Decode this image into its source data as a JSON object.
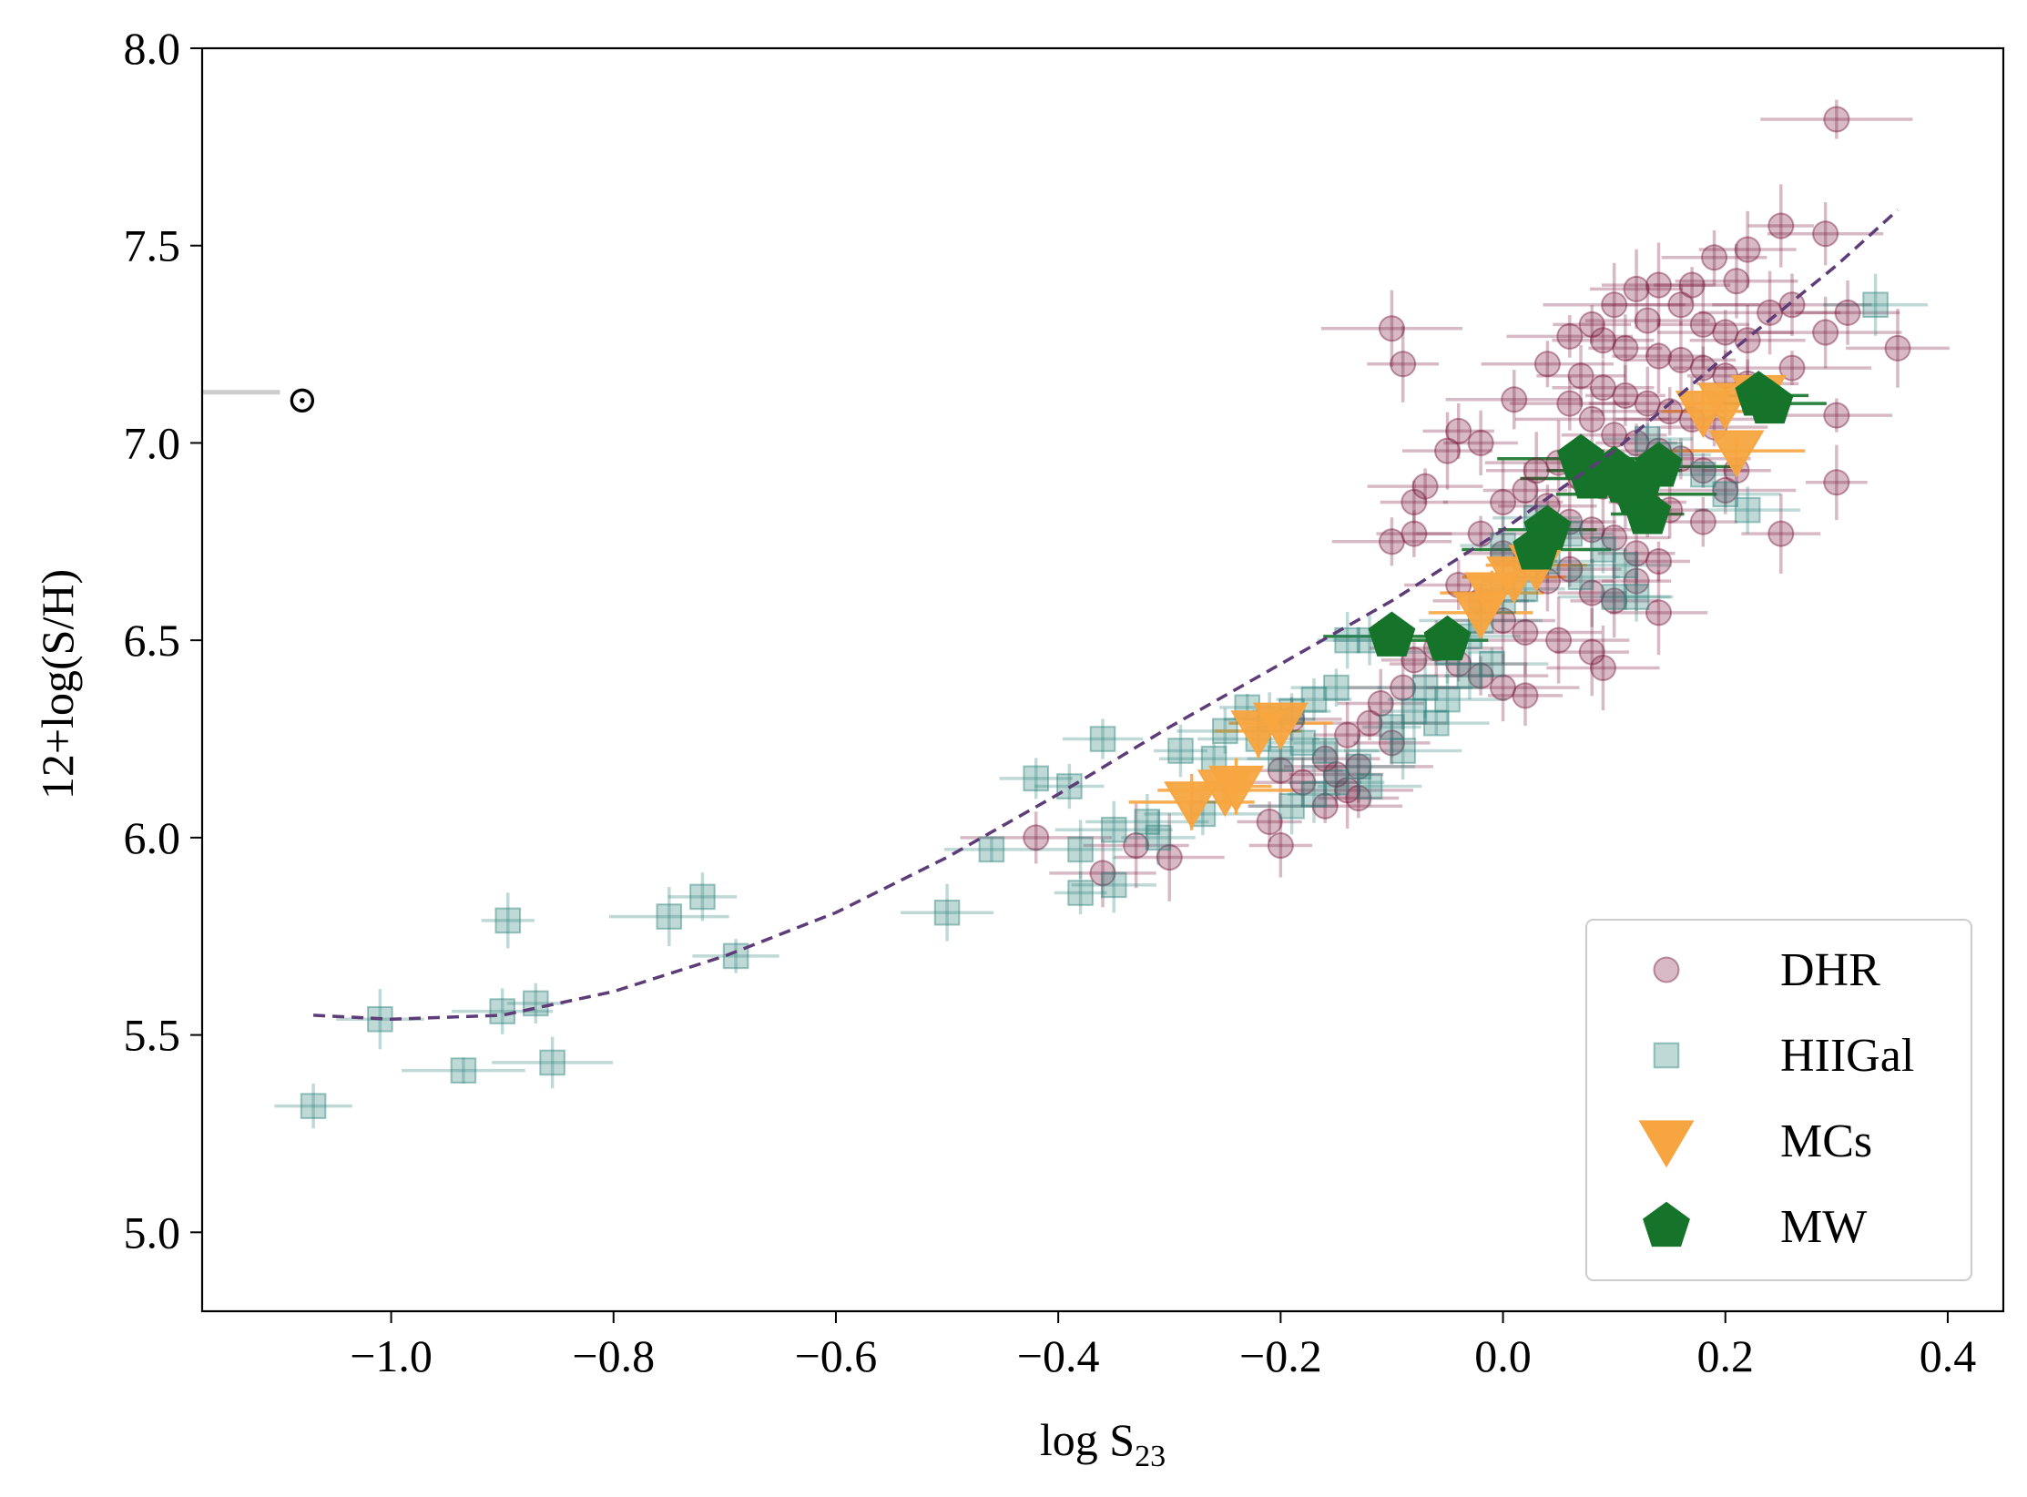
{
  "chart_data": {
    "type": "scatter",
    "title": "",
    "xlabel": "log S",
    "xlabel_sub": "23",
    "ylabel": "12+log(S/H)",
    "xlim": [
      -1.17,
      0.45
    ],
    "ylim": [
      4.8,
      8.0
    ],
    "xticks": [
      -1.0,
      -0.8,
      -0.6,
      -0.4,
      -0.2,
      0.0,
      0.2,
      0.4
    ],
    "xtick_labels": [
      "−1.0",
      "−0.8",
      "−0.6",
      "−0.4",
      "−0.2",
      "0.0",
      "0.2",
      "0.4"
    ],
    "yticks": [
      5.0,
      5.5,
      6.0,
      6.5,
      7.0,
      7.5,
      8.0
    ],
    "ytick_labels": [
      "5.0",
      "5.5",
      "6.0",
      "6.5",
      "7.0",
      "7.5",
      "8.0"
    ],
    "legend_position": "lower-right",
    "sun_marker": {
      "symbol": "⊙",
      "x": -1.08,
      "y": 7.11,
      "bar_x": [
        -1.17,
        -1.1
      ]
    },
    "fit_curve": {
      "style": "dashed",
      "color": "#5e3c78",
      "x_range": [
        -1.07,
        0.355
      ],
      "points": [
        [
          -1.07,
          5.55
        ],
        [
          -1.0,
          5.54
        ],
        [
          -0.9,
          5.55
        ],
        [
          -0.8,
          5.61
        ],
        [
          -0.7,
          5.7
        ],
        [
          -0.6,
          5.81
        ],
        [
          -0.5,
          5.95
        ],
        [
          -0.4,
          6.11
        ],
        [
          -0.3,
          6.28
        ],
        [
          -0.2,
          6.44
        ],
        [
          -0.1,
          6.6
        ],
        [
          0.0,
          6.78
        ],
        [
          0.1,
          6.98
        ],
        [
          0.2,
          7.22
        ],
        [
          0.3,
          7.45
        ],
        [
          0.355,
          7.59
        ]
      ]
    },
    "series": [
      {
        "name": "DHR",
        "marker": "circle",
        "color": "#7a1a3e",
        "points": [
          [
            0.3,
            7.82
          ],
          [
            0.25,
            7.55
          ],
          [
            0.29,
            7.53
          ],
          [
            0.22,
            7.49
          ],
          [
            0.19,
            7.47
          ],
          [
            0.21,
            7.41
          ],
          [
            0.17,
            7.4
          ],
          [
            0.12,
            7.39
          ],
          [
            0.14,
            7.4
          ],
          [
            0.16,
            7.35
          ],
          [
            0.1,
            7.35
          ],
          [
            0.08,
            7.3
          ],
          [
            0.26,
            7.35
          ],
          [
            0.24,
            7.33
          ],
          [
            0.31,
            7.33
          ],
          [
            0.29,
            7.28
          ],
          [
            0.355,
            7.24
          ],
          [
            0.13,
            7.31
          ],
          [
            0.18,
            7.3
          ],
          [
            0.2,
            7.28
          ],
          [
            0.22,
            7.26
          ],
          [
            0.06,
            7.27
          ],
          [
            0.09,
            7.26
          ],
          [
            0.11,
            7.24
          ],
          [
            0.14,
            7.22
          ],
          [
            0.16,
            7.21
          ],
          [
            0.18,
            7.19
          ],
          [
            0.2,
            7.17
          ],
          [
            0.22,
            7.15
          ],
          [
            0.26,
            7.19
          ],
          [
            0.04,
            7.2
          ],
          [
            0.07,
            7.17
          ],
          [
            0.09,
            7.14
          ],
          [
            0.11,
            7.12
          ],
          [
            0.13,
            7.1
          ],
          [
            0.15,
            7.08
          ],
          [
            0.17,
            7.06
          ],
          [
            0.19,
            7.04
          ],
          [
            0.01,
            7.11
          ],
          [
            0.06,
            7.1
          ],
          [
            0.08,
            7.06
          ],
          [
            0.1,
            7.02
          ],
          [
            0.12,
            7.0
          ],
          [
            0.14,
            6.98
          ],
          [
            0.16,
            6.96
          ],
          [
            0.18,
            6.93
          ],
          [
            0.3,
            7.07
          ],
          [
            -0.02,
            7.0
          ],
          [
            -0.04,
            7.03
          ],
          [
            -0.05,
            6.98
          ],
          [
            -0.09,
            7.2
          ],
          [
            -0.1,
            7.29
          ],
          [
            -0.07,
            6.89
          ],
          [
            0.03,
            6.93
          ],
          [
            0.05,
            6.95
          ],
          [
            0.07,
            6.91
          ],
          [
            0.09,
            6.89
          ],
          [
            0.11,
            6.87
          ],
          [
            0.13,
            6.85
          ],
          [
            0.15,
            6.83
          ],
          [
            0.18,
            6.8
          ],
          [
            0.2,
            6.88
          ],
          [
            0.3,
            6.9
          ],
          [
            0.21,
            6.93
          ],
          [
            -0.08,
            6.85
          ],
          [
            0.0,
            6.85
          ],
          [
            0.02,
            6.88
          ],
          [
            0.04,
            6.84
          ],
          [
            0.06,
            6.8
          ],
          [
            0.08,
            6.78
          ],
          [
            0.1,
            6.76
          ],
          [
            0.12,
            6.72
          ],
          [
            0.14,
            6.7
          ],
          [
            0.25,
            6.77
          ],
          [
            -0.1,
            6.75
          ],
          [
            -0.08,
            6.77
          ],
          [
            -0.02,
            6.77
          ],
          [
            0.0,
            6.72
          ],
          [
            0.02,
            6.7
          ],
          [
            0.04,
            6.65
          ],
          [
            0.06,
            6.68
          ],
          [
            0.08,
            6.62
          ],
          [
            0.1,
            6.6
          ],
          [
            0.12,
            6.65
          ],
          [
            0.14,
            6.57
          ],
          [
            -0.04,
            6.64
          ],
          [
            -0.02,
            6.6
          ],
          [
            0.0,
            6.55
          ],
          [
            0.02,
            6.52
          ],
          [
            0.05,
            6.5
          ],
          [
            0.08,
            6.47
          ],
          [
            0.09,
            6.43
          ],
          [
            -0.06,
            6.48
          ],
          [
            -0.04,
            6.44
          ],
          [
            -0.02,
            6.41
          ],
          [
            0.0,
            6.38
          ],
          [
            0.02,
            6.36
          ],
          [
            -0.08,
            6.45
          ],
          [
            -0.09,
            6.38
          ],
          [
            -0.11,
            6.34
          ],
          [
            -0.12,
            6.29
          ],
          [
            -0.14,
            6.26
          ],
          [
            -0.1,
            6.24
          ],
          [
            -0.16,
            6.2
          ],
          [
            -0.13,
            6.18
          ],
          [
            -0.15,
            6.16
          ],
          [
            -0.18,
            6.14
          ],
          [
            -0.14,
            6.12
          ],
          [
            -0.16,
            6.08
          ],
          [
            -0.13,
            6.1
          ],
          [
            -0.2,
            6.17
          ],
          [
            -0.21,
            6.04
          ],
          [
            -0.2,
            5.98
          ],
          [
            -0.3,
            5.95
          ],
          [
            -0.33,
            5.98
          ],
          [
            -0.36,
            5.91
          ],
          [
            -0.42,
            6.0
          ],
          [
            -0.19,
            6.3
          ]
        ]
      },
      {
        "name": "HIIGal",
        "marker": "square",
        "color": "#2a8079",
        "points": [
          [
            0.335,
            7.35
          ],
          [
            0.13,
            7.01
          ],
          [
            0.15,
            6.97
          ],
          [
            0.18,
            6.92
          ],
          [
            0.2,
            6.87
          ],
          [
            0.22,
            6.83
          ],
          [
            0.0,
            6.74
          ],
          [
            0.03,
            6.81
          ],
          [
            0.06,
            6.77
          ],
          [
            0.09,
            6.73
          ],
          [
            0.11,
            6.69
          ],
          [
            0.04,
            6.7
          ],
          [
            0.07,
            6.66
          ],
          [
            0.1,
            6.61
          ],
          [
            0.12,
            6.61
          ],
          [
            0.02,
            6.63
          ],
          [
            0.0,
            6.6
          ],
          [
            -0.02,
            6.55
          ],
          [
            -0.03,
            6.51
          ],
          [
            -0.05,
            6.47
          ],
          [
            -0.01,
            6.44
          ],
          [
            -0.03,
            6.41
          ],
          [
            -0.07,
            6.38
          ],
          [
            -0.05,
            6.35
          ],
          [
            -0.08,
            6.32
          ],
          [
            -0.06,
            6.29
          ],
          [
            -0.1,
            6.28
          ],
          [
            -0.09,
            6.22
          ],
          [
            -0.14,
            6.5
          ],
          [
            -0.12,
            6.5
          ],
          [
            -0.15,
            6.38
          ],
          [
            -0.17,
            6.35
          ],
          [
            -0.19,
            6.32
          ],
          [
            -0.21,
            6.3
          ],
          [
            -0.23,
            6.33
          ],
          [
            -0.25,
            6.27
          ],
          [
            -0.22,
            6.25
          ],
          [
            -0.18,
            6.24
          ],
          [
            -0.2,
            6.2
          ],
          [
            -0.16,
            6.22
          ],
          [
            -0.13,
            6.18
          ],
          [
            -0.15,
            6.14
          ],
          [
            -0.17,
            6.11
          ],
          [
            -0.19,
            6.08
          ],
          [
            -0.26,
            6.2
          ],
          [
            -0.12,
            6.13
          ],
          [
            -0.29,
            6.22
          ],
          [
            -0.36,
            6.25
          ],
          [
            -0.32,
            6.04
          ],
          [
            -0.35,
            6.02
          ],
          [
            -0.38,
            5.97
          ],
          [
            -0.31,
            6.0
          ],
          [
            -0.35,
            5.88
          ],
          [
            -0.38,
            5.86
          ],
          [
            -0.27,
            6.06
          ],
          [
            -0.39,
            6.13
          ],
          [
            -0.42,
            6.15
          ],
          [
            -0.46,
            5.97
          ],
          [
            -0.5,
            5.81
          ],
          [
            -0.69,
            5.7
          ],
          [
            -0.72,
            5.85
          ],
          [
            -0.75,
            5.8
          ],
          [
            -0.855,
            5.43
          ],
          [
            -0.87,
            5.58
          ],
          [
            -0.9,
            5.56
          ],
          [
            -0.895,
            5.79
          ],
          [
            -0.935,
            5.41
          ],
          [
            -1.01,
            5.54
          ],
          [
            -1.07,
            5.32
          ]
        ]
      },
      {
        "name": "MCs",
        "marker": "triangle-down",
        "color": "#f7a540",
        "points": [
          [
            0.23,
            7.12
          ],
          [
            0.2,
            7.1
          ],
          [
            0.18,
            7.08
          ],
          [
            0.21,
            6.98
          ],
          [
            0.03,
            6.69
          ],
          [
            0.01,
            6.66
          ],
          [
            -0.01,
            6.62
          ],
          [
            -0.02,
            6.57
          ],
          [
            -0.2,
            6.29
          ],
          [
            -0.22,
            6.27
          ],
          [
            -0.25,
            6.12
          ],
          [
            -0.28,
            6.09
          ],
          [
            -0.24,
            6.13
          ]
        ]
      },
      {
        "name": "MW",
        "marker": "pentagon",
        "color": "#15742a",
        "points": [
          [
            0.24,
            7.1
          ],
          [
            0.23,
            7.12
          ],
          [
            0.07,
            6.96
          ],
          [
            0.1,
            6.93
          ],
          [
            0.14,
            6.94
          ],
          [
            0.08,
            6.91
          ],
          [
            0.11,
            6.9
          ],
          [
            0.12,
            6.87
          ],
          [
            0.13,
            6.82
          ],
          [
            0.04,
            6.78
          ],
          [
            0.03,
            6.73
          ],
          [
            -0.1,
            6.51
          ],
          [
            -0.05,
            6.5
          ]
        ]
      }
    ]
  }
}
